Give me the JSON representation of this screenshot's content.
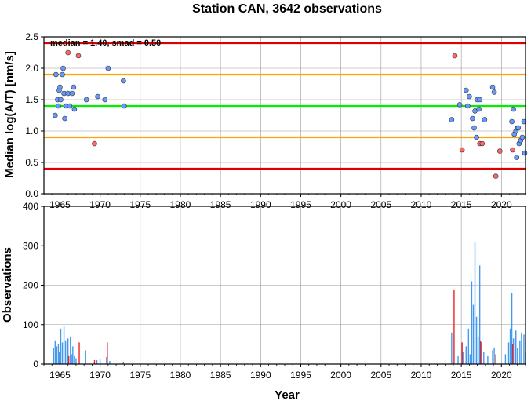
{
  "chart_data": [
    {
      "type": "scatter",
      "title": "Station CAN, 3642 observations",
      "xlabel": "",
      "ylabel": "Median log(A/T) [nm/s]",
      "xlim": [
        1963,
        2023
      ],
      "ylim": [
        0,
        2.5
      ],
      "yticks": [
        0.0,
        0.5,
        1.0,
        1.5,
        2.0,
        2.5
      ],
      "ytick_labels": [
        "0.0",
        "0.5",
        "1.0",
        "1.5",
        "2.0",
        "2.5"
      ],
      "xticks": [
        1965,
        1970,
        1975,
        1980,
        1985,
        1990,
        1995,
        2000,
        2005,
        2010,
        2015,
        2020
      ],
      "grid": true,
      "annotation": "median = 1.40, smad = 0.50",
      "reference_lines": [
        {
          "y": 2.4,
          "color": "#dd0000"
        },
        {
          "y": 1.9,
          "color": "#ffa500"
        },
        {
          "y": 1.4,
          "color": "#00ee00"
        },
        {
          "y": 0.9,
          "color": "#ffa500"
        },
        {
          "y": 0.4,
          "color": "#dd0000"
        }
      ],
      "series": [
        {
          "color": "#6699ff",
          "points": [
            [
              1964.4,
              1.25
            ],
            [
              1964.5,
              1.9
            ],
            [
              1964.7,
              1.5
            ],
            [
              1964.8,
              1.4
            ],
            [
              1964.9,
              1.65
            ],
            [
              1965.0,
              1.7
            ],
            [
              1965.1,
              1.5
            ],
            [
              1965.3,
              1.9
            ],
            [
              1965.4,
              2.0
            ],
            [
              1965.5,
              1.6
            ],
            [
              1965.6,
              1.2
            ],
            [
              1965.8,
              1.4
            ],
            [
              1966.0,
              1.6
            ],
            [
              1966.2,
              1.4
            ],
            [
              1966.5,
              1.6
            ],
            [
              1966.7,
              1.7
            ],
            [
              1966.8,
              1.35
            ],
            [
              1968.3,
              1.5
            ],
            [
              1969.7,
              1.55
            ],
            [
              1970.6,
              1.5
            ],
            [
              1971.0,
              2.0
            ],
            [
              1972.9,
              1.8
            ],
            [
              1973.0,
              1.4
            ],
            [
              2013.8,
              1.18
            ],
            [
              2014.8,
              1.42
            ],
            [
              2015.6,
              1.65
            ],
            [
              2015.8,
              1.4
            ],
            [
              2016.0,
              1.55
            ],
            [
              2016.4,
              1.2
            ],
            [
              2016.6,
              1.05
            ],
            [
              2016.7,
              1.32
            ],
            [
              2016.9,
              0.9
            ],
            [
              2017.0,
              1.5
            ],
            [
              2017.2,
              1.35
            ],
            [
              2017.3,
              1.5
            ],
            [
              2017.9,
              1.18
            ],
            [
              2018.9,
              1.7
            ],
            [
              2019.1,
              1.62
            ],
            [
              2021.3,
              1.15
            ],
            [
              2021.5,
              1.35
            ],
            [
              2021.6,
              0.95
            ],
            [
              2021.8,
              1.0
            ],
            [
              2021.9,
              0.58
            ],
            [
              2022.0,
              1.05
            ],
            [
              2022.1,
              1.05
            ],
            [
              2022.2,
              0.8
            ],
            [
              2022.4,
              0.85
            ],
            [
              2022.6,
              0.9
            ],
            [
              2022.8,
              1.15
            ],
            [
              2022.9,
              0.65
            ]
          ]
        },
        {
          "color": "#ff6666",
          "points": [
            [
              1966.0,
              2.25
            ],
            [
              1967.3,
              2.2
            ],
            [
              1969.3,
              0.8
            ],
            [
              2014.2,
              2.2
            ],
            [
              2015.1,
              0.7
            ],
            [
              2017.3,
              0.8
            ],
            [
              2017.6,
              0.8
            ],
            [
              2019.3,
              0.28
            ],
            [
              2019.8,
              0.68
            ],
            [
              2021.4,
              0.7
            ]
          ]
        }
      ]
    },
    {
      "type": "bar",
      "title": "",
      "xlabel": "Year",
      "ylabel": "Observations",
      "xlim": [
        1963,
        2023
      ],
      "ylim": [
        0,
        400
      ],
      "yticks": [
        0,
        100,
        200,
        300,
        400
      ],
      "xticks": [
        1965,
        1970,
        1975,
        1980,
        1985,
        1990,
        1995,
        2000,
        2005,
        2010,
        2015,
        2020
      ],
      "grid": true,
      "series": [
        {
          "color": "#4499ee",
          "bars": [
            [
              1964.2,
              40
            ],
            [
              1964.4,
              60
            ],
            [
              1964.6,
              45
            ],
            [
              1964.8,
              50
            ],
            [
              1964.9,
              30
            ],
            [
              1965.1,
              90
            ],
            [
              1965.3,
              55
            ],
            [
              1965.5,
              95
            ],
            [
              1965.7,
              60
            ],
            [
              1965.9,
              35
            ],
            [
              1966.0,
              65
            ],
            [
              1966.3,
              70
            ],
            [
              1966.5,
              25
            ],
            [
              1966.6,
              45
            ],
            [
              1966.8,
              20
            ],
            [
              1967.0,
              15
            ],
            [
              1968.2,
              35
            ],
            [
              1969.6,
              10
            ],
            [
              1970.0,
              12
            ],
            [
              1970.8,
              18
            ],
            [
              1971.2,
              8
            ],
            [
              1972.9,
              6
            ],
            [
              2013.8,
              80
            ],
            [
              2014.6,
              20
            ],
            [
              2015.2,
              30
            ],
            [
              2015.6,
              45
            ],
            [
              2015.9,
              90
            ],
            [
              2016.1,
              25
            ],
            [
              2016.3,
              210
            ],
            [
              2016.5,
              150
            ],
            [
              2016.7,
              310
            ],
            [
              2016.9,
              120
            ],
            [
              2017.1,
              70
            ],
            [
              2017.3,
              250
            ],
            [
              2017.5,
              55
            ],
            [
              2017.8,
              30
            ],
            [
              2018.3,
              20
            ],
            [
              2018.9,
              35
            ],
            [
              2019.1,
              42
            ],
            [
              2019.3,
              15
            ],
            [
              2020.5,
              25
            ],
            [
              2020.9,
              55
            ],
            [
              2021.1,
              90
            ],
            [
              2021.3,
              180
            ],
            [
              2021.5,
              65
            ],
            [
              2021.8,
              85
            ],
            [
              2022.0,
              40
            ],
            [
              2022.3,
              60
            ],
            [
              2022.5,
              80
            ],
            [
              2022.8,
              75
            ],
            [
              2023.0,
              30
            ]
          ]
        },
        {
          "color": "#ee2222",
          "bars": [
            [
              1966.1,
              20
            ],
            [
              1967.4,
              55
            ],
            [
              1969.3,
              10
            ],
            [
              1970.9,
              55
            ],
            [
              2014.1,
              188
            ],
            [
              2015.1,
              55
            ],
            [
              2017.4,
              58
            ],
            [
              2019.3,
              25
            ],
            [
              2021.4,
              50
            ]
          ]
        }
      ]
    }
  ]
}
